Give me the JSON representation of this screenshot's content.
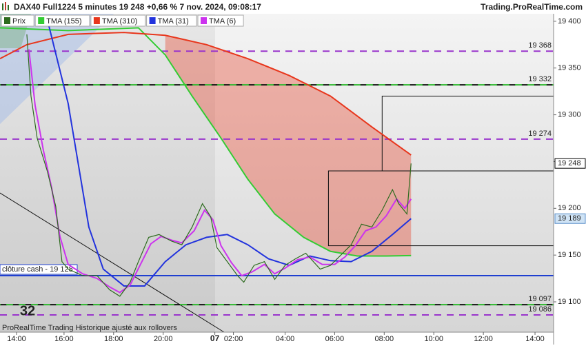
{
  "chart_data": {
    "type": "trading",
    "title": "DAX40 Full1224 5 minutes 19 248 +0,66 % 7 nov. 2024, 09:08:17",
    "source": "Trading.ProRealTime.com",
    "footer": "ProRealTime Trading  Historique ajusté aux rollovers",
    "annotation": "32",
    "annotation_color": "#8a2be2",
    "xlim": [
      0,
      268
    ],
    "xticks": [
      {
        "value": 8,
        "label": "14:00"
      },
      {
        "value": 31,
        "label": "16:00"
      },
      {
        "value": 55,
        "label": "18:00"
      },
      {
        "value": 79,
        "label": "20:00"
      },
      {
        "value": 104,
        "label": "07"
      },
      {
        "value": 113,
        "label": "02:00"
      },
      {
        "value": 138,
        "label": "04:00"
      },
      {
        "value": 162,
        "label": "06:00"
      },
      {
        "value": 186,
        "label": "08:00"
      },
      {
        "value": 210,
        "label": "10:00"
      },
      {
        "value": 234,
        "label": "12:00"
      },
      {
        "value": 259,
        "label": "14:00"
      }
    ],
    "ylim": [
      19067.6,
      19408
    ],
    "yticks": [
      {
        "value": 19100,
        "label": "19 100"
      },
      {
        "value": 19150,
        "label": "19 150"
      },
      {
        "value": 19200,
        "label": "19 200"
      },
      {
        "value": 19250,
        "label": "19 250"
      },
      {
        "value": 19300,
        "label": "19 300"
      },
      {
        "value": 19350,
        "label": "19 350"
      },
      {
        "value": 19400,
        "label": "19 400"
      }
    ],
    "series": [
      {
        "name": "Prix",
        "color": "#2e6b1f",
        "x": [
          13,
          15,
          18,
          23,
          27,
          30,
          33,
          40,
          47,
          53,
          58,
          63,
          67,
          72,
          77,
          83,
          88,
          93,
          98,
          102,
          105,
          110,
          115,
          118,
          123,
          128,
          133,
          138,
          143,
          148,
          155,
          160,
          165,
          170,
          175,
          180,
          185,
          190,
          193,
          197,
          199
        ],
        "values": [
          19386,
          19320,
          19275,
          19239,
          19202,
          19143,
          19135,
          19128,
          19128,
          19113,
          19106,
          19121,
          19143,
          19169,
          19172,
          19165,
          19161,
          19180,
          19205,
          19191,
          19158,
          19143,
          19128,
          19121,
          19139,
          19143,
          19124,
          19139,
          19146,
          19152,
          19135,
          19139,
          19150,
          19161,
          19183,
          19180,
          19198,
          19220,
          19205,
          19194,
          19248
        ]
      },
      {
        "name": "TMA (155)",
        "color": "#33cc33",
        "x": [
          0,
          33,
          67,
          80,
          93,
          107,
          120,
          133,
          147,
          160,
          173,
          187,
          199
        ],
        "values": [
          19393,
          19390,
          19393,
          19364,
          19320,
          19275,
          19231,
          19194,
          19169,
          19154,
          19149,
          19149,
          19149.5
        ]
      },
      {
        "name": "TMA (310)",
        "color": "#e8361c",
        "x": [
          0,
          13,
          33,
          60,
          80,
          100,
          120,
          140,
          160,
          180,
          199
        ],
        "values": [
          19360,
          19375,
          19386,
          19388,
          19385,
          19375,
          19360,
          19342,
          19320,
          19287,
          19257
        ]
      },
      {
        "name": "TMA (31)",
        "color": "#2233dd",
        "x": [
          23,
          33,
          43,
          50,
          60,
          70,
          80,
          90,
          100,
          110,
          120,
          130,
          140,
          150,
          160,
          170,
          180,
          190,
          199
        ],
        "values": [
          19401,
          19312,
          19180,
          19135,
          19117,
          19117,
          19143,
          19161,
          19169,
          19172,
          19161,
          19146,
          19139,
          19149,
          19144,
          19143,
          19154,
          19172,
          19189
        ]
      },
      {
        "name": "TMA (6)",
        "color": "#cc33ee",
        "x": [
          14,
          17,
          21,
          25,
          29,
          33,
          40,
          47,
          53,
          58,
          63,
          68,
          73,
          78,
          83,
          88,
          94,
          99,
          103,
          107,
          112,
          117,
          122,
          128,
          133,
          138,
          144,
          150,
          156,
          162,
          167,
          172,
          177,
          182,
          187,
          192,
          196,
          199
        ],
        "values": [
          19370,
          19310,
          19262,
          19222,
          19170,
          19140,
          19130,
          19125,
          19116,
          19110,
          19118,
          19140,
          19162,
          19170,
          19166,
          19163,
          19176,
          19198,
          19188,
          19160,
          19142,
          19128,
          19132,
          19140,
          19130,
          19136,
          19145,
          19148,
          19140,
          19140,
          19148,
          19160,
          19176,
          19180,
          19192,
          19210,
          19200,
          19210
        ]
      }
    ],
    "levels": [
      {
        "value": 19368,
        "label": "19 368",
        "colors": [
          "#9933cc"
        ]
      },
      {
        "value": 19332,
        "label": "19 332",
        "colors": [
          "#111111",
          "#2db82d"
        ]
      },
      {
        "value": 19274,
        "label": "19 274",
        "colors": [
          "#9933cc"
        ]
      },
      {
        "value": 19097,
        "label": "19 097",
        "colors": [
          "#111111",
          "#2db82d"
        ]
      },
      {
        "value": 19086,
        "label": "19 086",
        "colors": [
          "#9933cc"
        ]
      }
    ],
    "cash_close": {
      "label": "clôture cash -  19 128",
      "value": 19128,
      "color": "#1f3fd0"
    },
    "boxes": [
      {
        "x": [
          159,
          268
        ],
        "y": [
          19160,
          19240
        ]
      },
      {
        "x": [
          185,
          268
        ],
        "y": [
          19240,
          19320
        ]
      }
    ],
    "price_tags": [
      {
        "value": 19248,
        "label": "19 248",
        "bg": "#ffffff",
        "border": "#000000"
      },
      {
        "value": 19189,
        "label": "19 189",
        "bg": "#cfe3f5",
        "border": "#5b8fc9"
      }
    ]
  }
}
